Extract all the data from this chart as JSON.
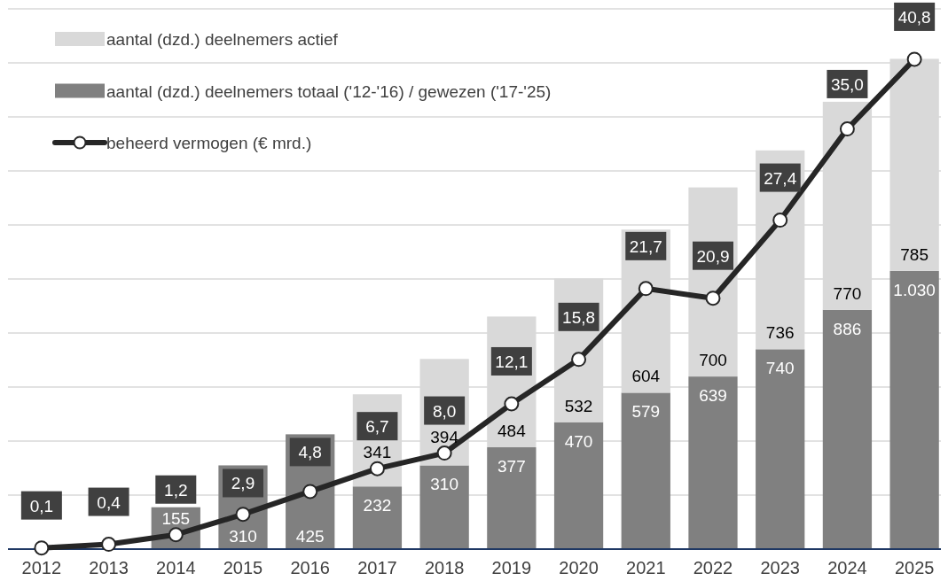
{
  "chart_data": {
    "type": "bar",
    "stacked": true,
    "categories": [
      "2012",
      "2013",
      "2014",
      "2015",
      "2016",
      "2017",
      "2018",
      "2019",
      "2020",
      "2021",
      "2022",
      "2023",
      "2024",
      "2025"
    ],
    "series": [
      {
        "name": "aantal (dzd.) deelnemers totaal ('12-'16) / gewezen ('17-'25)",
        "color": "#808080",
        "values": [
          null,
          null,
          155,
          310,
          425,
          232,
          310,
          377,
          470,
          579,
          639,
          740,
          886,
          1030
        ],
        "value_labels": [
          null,
          null,
          "155",
          "310",
          "425",
          "232",
          "310",
          "377",
          "470",
          "579",
          "639",
          "740",
          "886",
          "1.030"
        ]
      },
      {
        "name": "aantal (dzd.) deelnemers actief",
        "color": "#d9d9d9",
        "values": [
          null,
          null,
          null,
          null,
          null,
          341,
          394,
          484,
          532,
          604,
          700,
          736,
          770,
          785
        ],
        "value_labels": [
          null,
          null,
          null,
          null,
          null,
          "341",
          "394",
          "484",
          "532",
          "604",
          "700",
          "736",
          "770",
          "785"
        ]
      },
      {
        "name": "beheerd vermogen (€ mrd.)",
        "type": "line",
        "axis": "y2",
        "color": "#262626",
        "values": [
          0.1,
          0.4,
          1.2,
          2.9,
          4.8,
          6.7,
          8.0,
          12.1,
          15.8,
          21.7,
          20.9,
          27.4,
          35.0,
          40.8
        ],
        "value_labels": [
          "0,1",
          "0,4",
          "1,2",
          "2,9",
          "4,8",
          "6,7",
          "8,0",
          "12,1",
          "15,8",
          "21,7",
          "20,9",
          "27,4",
          "35,0",
          "40,8"
        ]
      }
    ],
    "ylim": [
      0,
      2000
    ],
    "yticks": [
      {
        "value": 0,
        "label": null
      },
      {
        "value": 200,
        "label": null
      },
      {
        "value": 400,
        "label": null
      },
      {
        "value": 600,
        "label": null
      },
      {
        "value": 800,
        "label": null
      },
      {
        "value": 1000,
        "label": null
      },
      {
        "value": 1200,
        "label": null
      },
      {
        "value": 1400,
        "label": null
      },
      {
        "value": 1600,
        "label": null
      },
      {
        "value": 1800,
        "label": null
      },
      {
        "value": 2000,
        "label": null
      }
    ],
    "y2lim": [
      0,
      45
    ],
    "tick_labels": "x",
    "grid": "y",
    "legend": "top left",
    "marker": "circle",
    "line_style": "solid"
  }
}
